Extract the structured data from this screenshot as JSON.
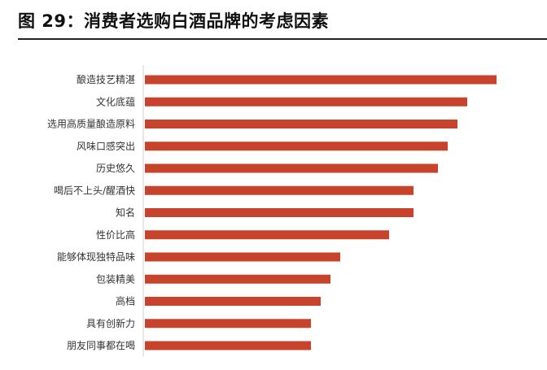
{
  "header": {
    "title": "图 29：消费者选购白酒品牌的考虑因素"
  },
  "colors": {
    "bar": "#C8432B",
    "axis": "#D0D0D0",
    "title_rule": "#222222"
  },
  "chart_data": {
    "type": "bar",
    "orientation": "horizontal",
    "categories": [
      "酿造技艺精湛",
      "文化底蕴",
      "选用高质量酿造原料",
      "风味口感突出",
      "历史悠久",
      "喝后不上头/醒酒快",
      "知名",
      "性价比高",
      "能够体现独特品味",
      "包装精美",
      "高档",
      "具有创新力",
      "朋友同事都在喝"
    ],
    "values": [
      72,
      66,
      64,
      62,
      60,
      55,
      55,
      50,
      40,
      38,
      36,
      34,
      34
    ],
    "xlim": [
      0,
      80
    ],
    "grid": false,
    "legend": "none"
  }
}
